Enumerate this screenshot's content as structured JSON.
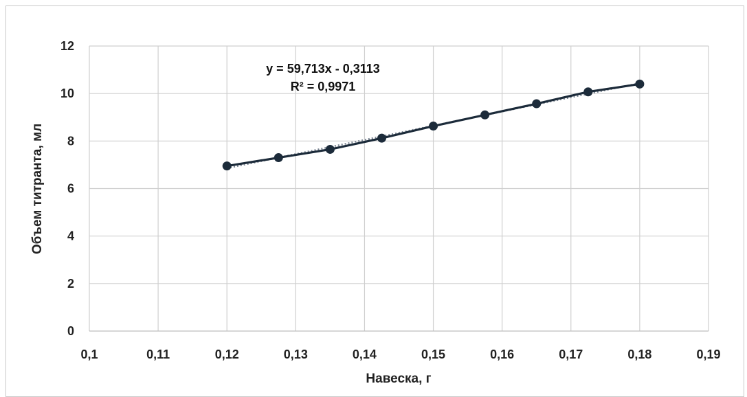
{
  "chart_data": {
    "type": "scatter",
    "xlabel": "Навеска, г",
    "ylabel": "Объем титранта, мл",
    "xlim": [
      0.1,
      0.19
    ],
    "ylim": [
      0,
      12
    ],
    "x_ticks": [
      "0,1",
      "0,11",
      "0,12",
      "0,13",
      "0,14",
      "0,15",
      "0,16",
      "0,17",
      "0,18",
      "0,19"
    ],
    "y_ticks": [
      "0",
      "2",
      "4",
      "6",
      "8",
      "10",
      "12"
    ],
    "grid": true,
    "series": [
      {
        "x": [
          0.12,
          0.1275,
          0.135,
          0.1425,
          0.15,
          0.1575,
          0.165,
          0.1725,
          0.18
        ],
        "y": [
          6.95,
          7.3,
          7.65,
          8.12,
          8.63,
          9.1,
          9.57,
          10.07,
          10.4
        ],
        "color": "#1c2b3a"
      }
    ],
    "trendline": {
      "type": "linear",
      "slope": 59.713,
      "intercept": -0.3113,
      "equation": "y = 59,713x - 0,3113",
      "r_squared": "R² = 0,9971"
    }
  }
}
